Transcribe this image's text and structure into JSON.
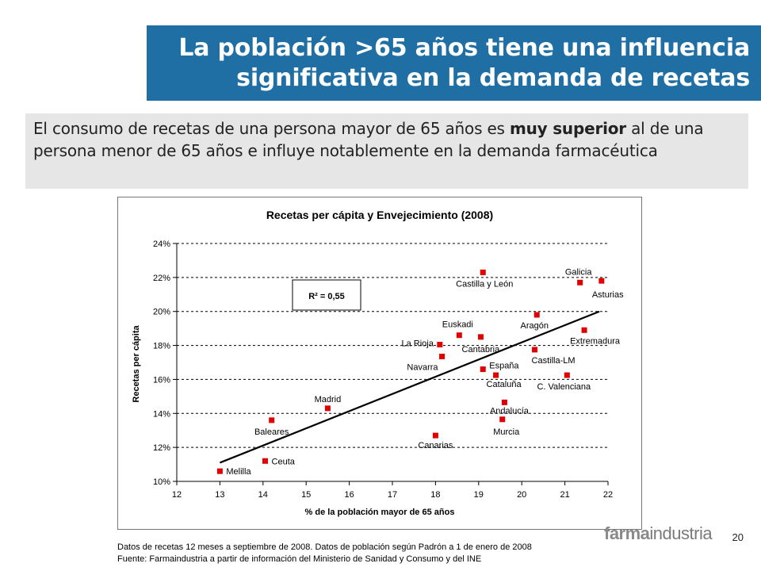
{
  "header": {
    "title_line1": "La población >65 años tiene una influencia",
    "title_line2": "significativa en la demanda de recetas"
  },
  "summary": {
    "part1": "El consumo de recetas de una persona mayor de 65 años es ",
    "bold": "muy superior",
    "part2": " al de una persona menor de 65 años e influye notablemente en la demanda farmacéutica"
  },
  "chart_data": {
    "type": "scatter",
    "title": "Recetas per cápita y Envejecimiento (2008)",
    "xlabel": "% de la población mayor de 65 años",
    "ylabel": "Recetas per cápita",
    "xlim": [
      12,
      22
    ],
    "ylim": [
      10,
      24
    ],
    "xticks": [
      "12",
      "13",
      "14",
      "15",
      "16",
      "17",
      "18",
      "19",
      "20",
      "21",
      "22"
    ],
    "yticks": [
      "10%",
      "12%",
      "14%",
      "16%",
      "18%",
      "20%",
      "22%",
      "24%"
    ],
    "r2_label": "R² = 0,55",
    "trendline": {
      "x1": 13.0,
      "y1": 11.1,
      "x2": 21.8,
      "y2": 20.0
    },
    "points": [
      {
        "name": "Melilla",
        "x": 13.0,
        "y": 10.6
      },
      {
        "name": "Ceuta",
        "x": 14.05,
        "y": 11.2
      },
      {
        "name": "Baleares",
        "x": 14.2,
        "y": 13.6
      },
      {
        "name": "Madrid",
        "x": 15.5,
        "y": 14.3
      },
      {
        "name": "Canarias",
        "x": 18.0,
        "y": 12.7
      },
      {
        "name": "La Rioja",
        "x": 18.1,
        "y": 18.05
      },
      {
        "name": "Navarra",
        "x": 18.15,
        "y": 17.35
      },
      {
        "name": "Euskadi",
        "x": 18.55,
        "y": 18.6
      },
      {
        "name": "Cantabria",
        "x": 19.05,
        "y": 18.5
      },
      {
        "name": "Castilla y León",
        "x": 19.1,
        "y": 22.3
      },
      {
        "name": "España",
        "x": 19.1,
        "y": 16.6
      },
      {
        "name": "Cataluña",
        "x": 19.4,
        "y": 16.25
      },
      {
        "name": "Andalucía",
        "x": 19.6,
        "y": 14.65
      },
      {
        "name": "Murcia",
        "x": 19.55,
        "y": 13.65
      },
      {
        "name": "Aragón",
        "x": 20.35,
        "y": 19.8
      },
      {
        "name": "Castilla-LM",
        "x": 20.3,
        "y": 17.75
      },
      {
        "name": "C. Valenciana",
        "x": 21.05,
        "y": 16.25
      },
      {
        "name": "Extremadura",
        "x": 21.45,
        "y": 18.9
      },
      {
        "name": "Galicia",
        "x": 21.35,
        "y": 21.7
      },
      {
        "name": "Asturias",
        "x": 21.85,
        "y": 21.8
      }
    ]
  },
  "footnotes": {
    "line1": "Datos de recetas 12 meses a septiembre de 2008. Datos de población según Padrón a 1 de enero de 2008",
    "line2": "Fuente: Farmaindustria a partir de información del Ministerio de Sanidad y Consumo y del INE"
  },
  "brand": {
    "part1": "farma",
    "part2": "industria"
  },
  "page_number": "20",
  "colors": {
    "title_bg": "#1f6fa5",
    "point": "#e00000",
    "summary_bg": "#e6e6e6"
  }
}
